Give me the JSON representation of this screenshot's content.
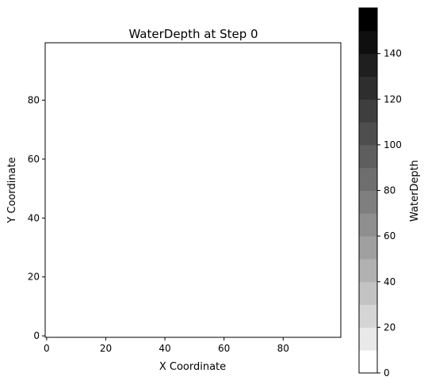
{
  "chart_data": {
    "type": "heatmap",
    "title": "WaterDepth at Step 0",
    "xlabel": "X Coordinate",
    "ylabel": "Y Coordinate",
    "xlim": [
      -0.5,
      99.5
    ],
    "ylim": [
      -0.5,
      99.5
    ],
    "x_ticks": [
      0,
      20,
      40,
      60,
      80
    ],
    "y_ticks": [
      0,
      20,
      40,
      60,
      80
    ],
    "values_note": "",
    "grid": false,
    "colormap": "Greys",
    "colorbar": {
      "label": "WaterDepth",
      "range": [
        0,
        160
      ],
      "levels": 16,
      "ticks": [
        0,
        20,
        40,
        60,
        80,
        100,
        120,
        140
      ],
      "low_color": "#ffffff",
      "high_color": "#000000"
    },
    "field_value_everywhere": 0
  }
}
